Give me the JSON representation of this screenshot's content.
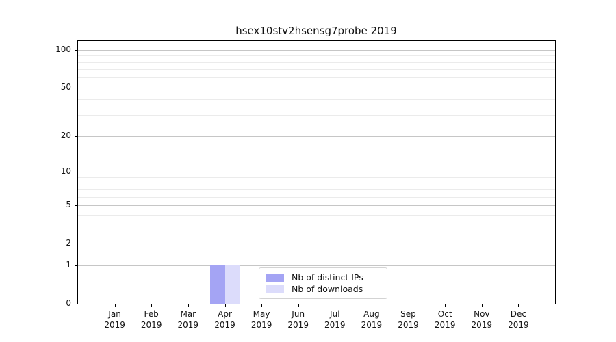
{
  "title": "hsex10stv2hsensg7probe 2019",
  "chart_data": {
    "type": "bar",
    "title": "hsex10stv2hsensg7probe 2019",
    "categories": [
      "Jan 2019",
      "Feb 2019",
      "Mar 2019",
      "Apr 2019",
      "May 2019",
      "Jun 2019",
      "Jul 2019",
      "Aug 2019",
      "Sep 2019",
      "Oct 2019",
      "Nov 2019",
      "Dec 2019"
    ],
    "series": [
      {
        "name": "Nb of distinct IPs",
        "color": "#a4a4f4",
        "values": [
          0,
          0,
          0,
          1,
          0,
          0,
          0,
          0,
          0,
          0,
          0,
          0
        ]
      },
      {
        "name": "Nb of downloads",
        "color": "#dcdcfb",
        "values": [
          0,
          0,
          0,
          1,
          0,
          0,
          0,
          0,
          0,
          0,
          0,
          0
        ]
      }
    ],
    "yscale": "log1p",
    "ylim": [
      0,
      117
    ],
    "y_major_ticks": [
      0,
      1,
      2,
      5,
      10,
      20,
      50,
      100
    ],
    "y_minor_ticks": [
      3,
      4,
      6,
      7,
      8,
      9,
      30,
      40,
      60,
      70,
      80,
      90
    ],
    "xlabel": "",
    "ylabel": "",
    "grid": "horizontal",
    "legend_position": "lower center"
  },
  "colors": {
    "grid_major": "#c6c6c6",
    "grid_minor": "#ebebeb",
    "spine": "#000000",
    "text": "#141414",
    "background": "#ffffff"
  }
}
